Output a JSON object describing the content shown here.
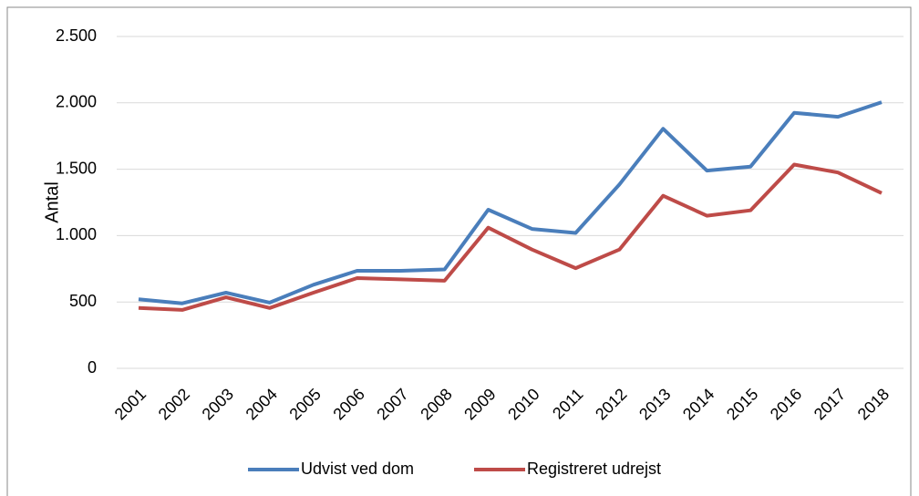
{
  "chart_data": {
    "type": "line",
    "ylabel": "Antal",
    "categories": [
      "2001",
      "2002",
      "2003",
      "2004",
      "2005",
      "2006",
      "2007",
      "2008",
      "2009",
      "2010",
      "2011",
      "2012",
      "2013",
      "2014",
      "2015",
      "2016",
      "2017",
      "2018"
    ],
    "series": [
      {
        "name": "Udvist ved dom",
        "color": "#4a7ebb",
        "values": [
          520,
          490,
          570,
          495,
          630,
          735,
          735,
          745,
          1195,
          1050,
          1020,
          1385,
          1805,
          1490,
          1520,
          1925,
          1895,
          2005
        ]
      },
      {
        "name": "Registreret udrejst",
        "color": "#be4b48",
        "values": [
          455,
          440,
          535,
          455,
          570,
          680,
          670,
          660,
          1060,
          895,
          755,
          895,
          1300,
          1150,
          1190,
          1535,
          1475,
          1320
        ]
      }
    ],
    "ylim": [
      0,
      2500
    ],
    "yticks": [
      0,
      500,
      {
        "value": 1000,
        "label": "1.000"
      },
      {
        "value": 1500,
        "label": "1.500"
      },
      {
        "value": 2000,
        "label": "2.000"
      },
      {
        "value": 2500,
        "label": "2.500"
      }
    ],
    "grid": true,
    "legend": "bottom"
  }
}
